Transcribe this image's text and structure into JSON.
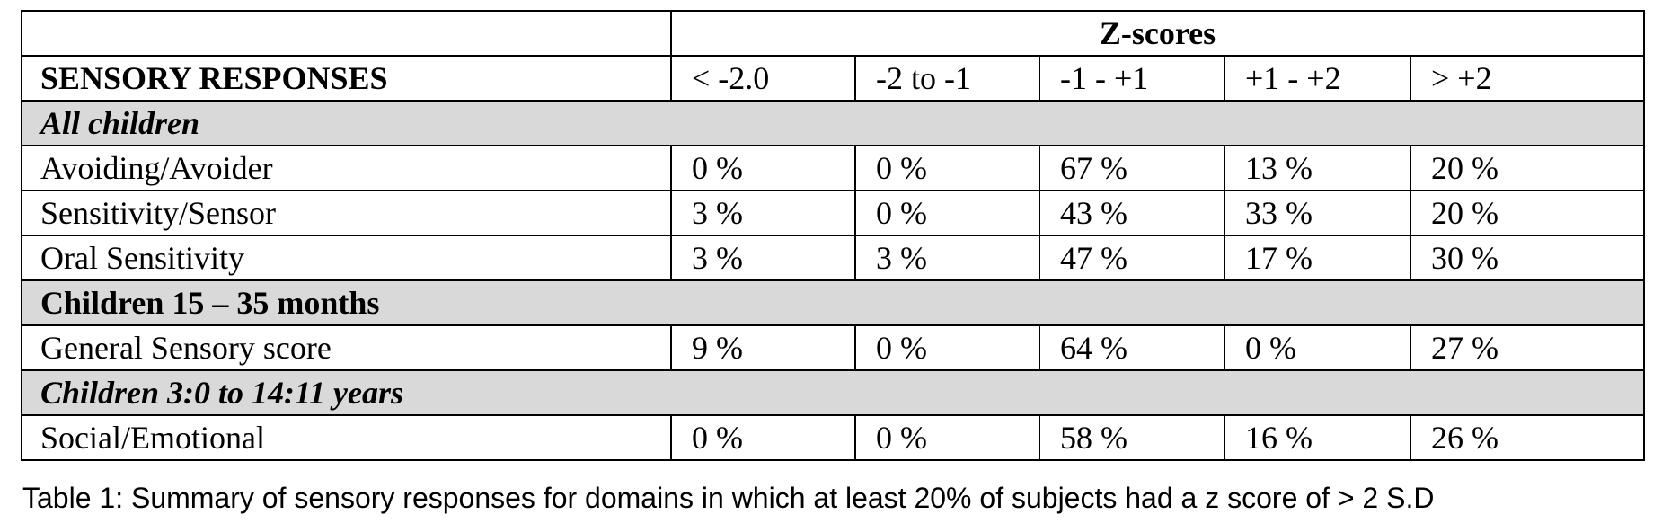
{
  "header": {
    "group": "Z-scores",
    "first": "SENSORY RESPONSES",
    "columns": [
      "< -2.0",
      "-2 to -1",
      "-1 - +1",
      "+1 - +2",
      "> +2"
    ]
  },
  "sections": [
    {
      "title": "All children",
      "rows": [
        {
          "label": "Avoiding/Avoider",
          "values": [
            "0 %",
            "0 %",
            "67 %",
            "13 %",
            "20 %"
          ]
        },
        {
          "label": "Sensitivity/Sensor",
          "values": [
            "3 %",
            "0 %",
            "43 %",
            "33 %",
            "20 %"
          ]
        },
        {
          "label": "Oral Sensitivity",
          "values": [
            "3 %",
            "3 %",
            "47 %",
            "17 %",
            "30 %"
          ]
        }
      ]
    },
    {
      "title": "Children 15 – 35 months",
      "rows": [
        {
          "label": "General Sensory score",
          "values": [
            "9 %",
            "0 %",
            "64 %",
            "0 %",
            "27 %"
          ]
        }
      ]
    },
    {
      "title": "Children 3:0 to 14:11 years",
      "rows": [
        {
          "label": "Social/Emotional",
          "values": [
            "0 %",
            "0 %",
            "58 %",
            "16 %",
            "26 %"
          ]
        }
      ]
    }
  ],
  "caption": "Table 1: Summary of sensory responses for domains in which at least 20% of subjects had a z score of > 2 S.D"
}
